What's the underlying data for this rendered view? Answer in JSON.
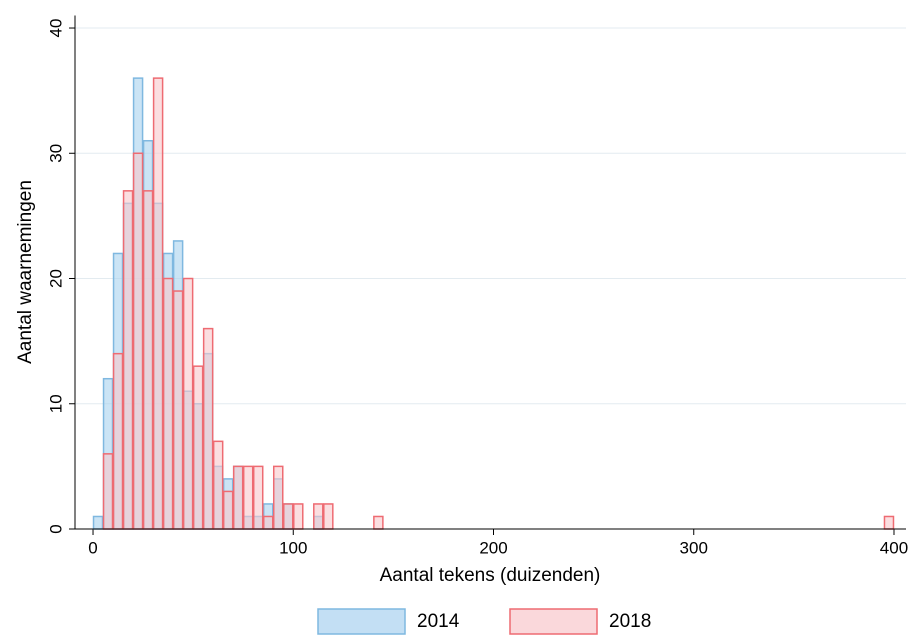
{
  "chart_data": {
    "type": "histogram",
    "x_label": "Aantal tekens (duizenden)",
    "y_label": "Aantal waarnemingen",
    "bins": [
      0,
      5,
      10,
      15,
      20,
      25,
      30,
      35,
      40,
      45,
      50,
      55,
      60,
      65,
      70,
      75,
      80,
      85,
      90,
      95,
      100,
      105,
      110,
      115,
      120,
      125,
      130,
      135,
      140,
      145,
      150,
      155,
      160,
      165,
      170,
      175,
      180,
      185,
      190,
      195,
      200,
      205,
      210,
      215,
      220,
      225,
      230,
      235,
      240,
      245,
      250,
      255,
      260,
      265,
      270,
      275,
      280,
      285,
      290,
      295,
      300,
      305,
      310,
      315,
      320,
      325,
      330,
      335,
      340,
      345,
      350,
      355,
      360,
      365,
      370,
      375,
      380,
      385,
      390,
      395,
      400
    ],
    "series": [
      {
        "name": "2014",
        "color": "#7fb8e0",
        "fill": "#a9d2ef",
        "values": [
          1,
          12,
          22,
          26,
          36,
          31,
          26,
          22,
          23,
          11,
          10,
          14,
          5,
          4,
          5,
          1,
          1,
          2,
          4,
          2,
          0,
          0,
          1,
          0,
          0,
          0,
          0,
          0,
          0,
          0,
          0,
          0,
          0,
          0,
          0,
          0,
          0,
          0,
          0,
          0,
          0,
          0,
          0,
          0,
          0,
          0,
          0,
          0,
          0,
          0,
          0,
          0,
          0,
          0,
          0,
          0,
          0,
          0,
          0,
          0,
          0,
          0,
          0,
          0,
          0,
          0,
          0,
          0,
          0,
          0,
          0,
          0,
          0,
          0,
          0,
          0,
          0,
          0,
          0,
          0
        ]
      },
      {
        "name": "2018",
        "color": "#ee6b72",
        "fill": "#f8c8cc",
        "values": [
          0,
          6,
          14,
          27,
          30,
          27,
          36,
          20,
          19,
          20,
          13,
          16,
          7,
          3,
          5,
          5,
          5,
          1,
          5,
          2,
          2,
          0,
          2,
          2,
          0,
          0,
          0,
          0,
          1,
          0,
          0,
          0,
          0,
          0,
          0,
          0,
          0,
          0,
          0,
          0,
          0,
          0,
          0,
          0,
          0,
          0,
          0,
          0,
          0,
          0,
          0,
          0,
          0,
          0,
          0,
          0,
          0,
          0,
          0,
          0,
          0,
          0,
          0,
          0,
          0,
          0,
          0,
          0,
          0,
          0,
          0,
          0,
          0,
          0,
          0,
          0,
          0,
          0,
          0,
          1
        ]
      }
    ],
    "xlim": [
      -9,
      406
    ],
    "xticks": [
      0,
      100,
      200,
      300,
      400
    ],
    "ylim": [
      0,
      41
    ],
    "yticks": [
      0,
      10,
      20,
      30,
      40
    ],
    "grid": true,
    "legend": "bottom"
  }
}
